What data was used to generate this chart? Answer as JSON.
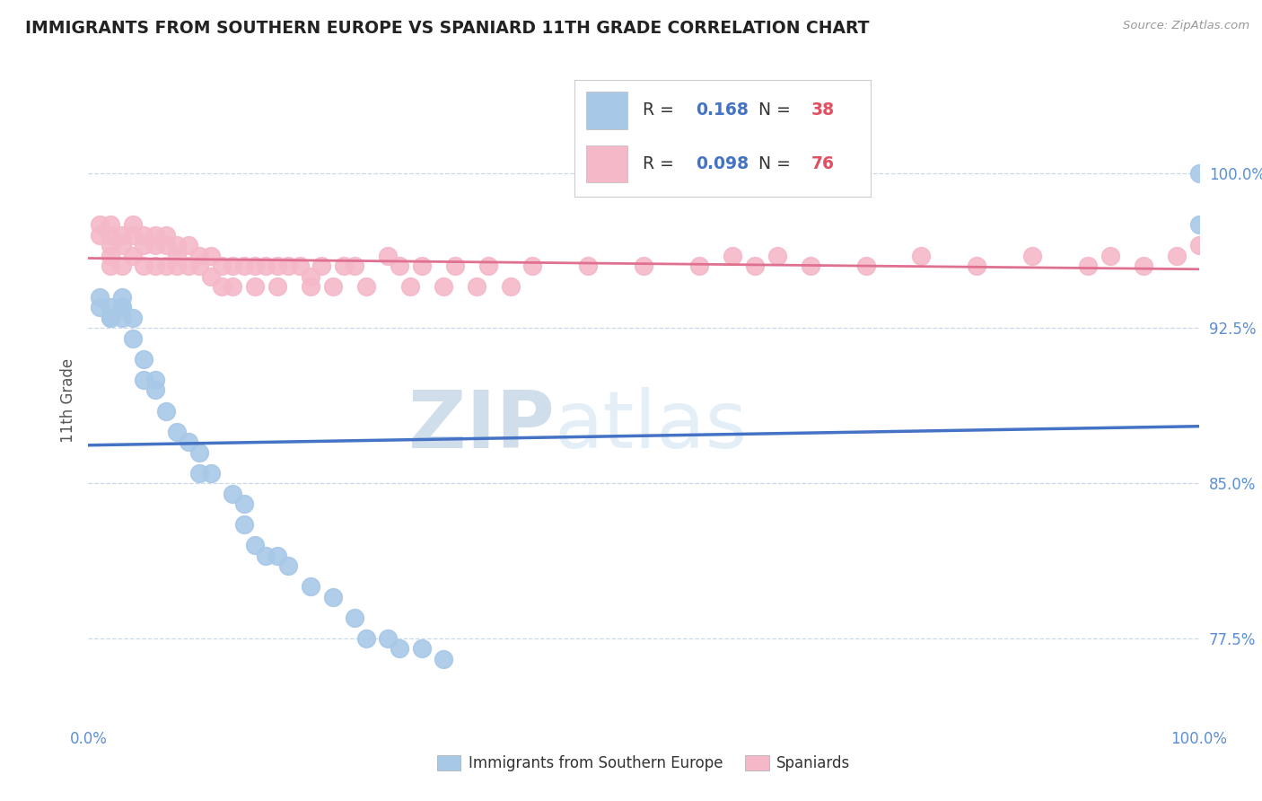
{
  "title": "IMMIGRANTS FROM SOUTHERN EUROPE VS SPANIARD 11TH GRADE CORRELATION CHART",
  "source_text": "Source: ZipAtlas.com",
  "ylabel": "11th Grade",
  "xlim": [
    0.0,
    1.0
  ],
  "ylim": [
    0.735,
    1.045
  ],
  "yticks": [
    0.775,
    0.85,
    0.925,
    1.0
  ],
  "ytick_labels": [
    "77.5%",
    "85.0%",
    "92.5%",
    "100.0%"
  ],
  "xticks": [
    0.0,
    1.0
  ],
  "xtick_labels": [
    "0.0%",
    "100.0%"
  ],
  "blue_R": 0.168,
  "blue_N": 38,
  "pink_R": 0.098,
  "pink_N": 76,
  "blue_color": "#a8c8e8",
  "pink_color": "#f4b8c8",
  "blue_line_color": "#4472c4",
  "pink_line_color": "#e07090",
  "legend_label_blue": "Immigrants from Southern Europe",
  "legend_label_pink": "Spaniards",
  "background_color": "#ffffff",
  "watermark_text": "ZIPatlas",
  "watermark_color": "#dce8f0",
  "blue_x": [
    0.01,
    0.01,
    0.02,
    0.02,
    0.02,
    0.03,
    0.03,
    0.03,
    0.03,
    0.04,
    0.04,
    0.05,
    0.05,
    0.06,
    0.06,
    0.07,
    0.08,
    0.09,
    0.1,
    0.1,
    0.11,
    0.13,
    0.14,
    0.14,
    0.15,
    0.16,
    0.17,
    0.18,
    0.2,
    0.22,
    0.24,
    0.25,
    0.27,
    0.28,
    0.3,
    0.32,
    1.0,
    1.0
  ],
  "blue_y": [
    0.935,
    0.94,
    0.935,
    0.93,
    0.93,
    0.935,
    0.94,
    0.935,
    0.93,
    0.92,
    0.93,
    0.91,
    0.9,
    0.9,
    0.895,
    0.885,
    0.875,
    0.87,
    0.865,
    0.855,
    0.855,
    0.845,
    0.84,
    0.83,
    0.82,
    0.815,
    0.815,
    0.81,
    0.8,
    0.795,
    0.785,
    0.775,
    0.775,
    0.77,
    0.77,
    0.765,
    0.975,
    1.0
  ],
  "pink_x": [
    0.01,
    0.01,
    0.02,
    0.02,
    0.02,
    0.02,
    0.02,
    0.03,
    0.03,
    0.03,
    0.04,
    0.04,
    0.04,
    0.05,
    0.05,
    0.05,
    0.06,
    0.06,
    0.06,
    0.07,
    0.07,
    0.07,
    0.08,
    0.08,
    0.08,
    0.09,
    0.09,
    0.1,
    0.1,
    0.11,
    0.11,
    0.12,
    0.12,
    0.13,
    0.13,
    0.14,
    0.15,
    0.15,
    0.16,
    0.17,
    0.17,
    0.18,
    0.19,
    0.2,
    0.2,
    0.21,
    0.22,
    0.23,
    0.24,
    0.25,
    0.27,
    0.28,
    0.29,
    0.3,
    0.32,
    0.33,
    0.35,
    0.36,
    0.38,
    0.4,
    0.45,
    0.5,
    0.55,
    0.58,
    0.6,
    0.62,
    0.65,
    0.7,
    0.75,
    0.8,
    0.85,
    0.9,
    0.92,
    0.95,
    0.98,
    1.0
  ],
  "pink_y": [
    0.97,
    0.975,
    0.975,
    0.97,
    0.965,
    0.96,
    0.955,
    0.97,
    0.965,
    0.955,
    0.975,
    0.97,
    0.96,
    0.97,
    0.965,
    0.955,
    0.97,
    0.965,
    0.955,
    0.97,
    0.965,
    0.955,
    0.965,
    0.96,
    0.955,
    0.965,
    0.955,
    0.96,
    0.955,
    0.96,
    0.95,
    0.955,
    0.945,
    0.955,
    0.945,
    0.955,
    0.955,
    0.945,
    0.955,
    0.955,
    0.945,
    0.955,
    0.955,
    0.95,
    0.945,
    0.955,
    0.945,
    0.955,
    0.955,
    0.945,
    0.96,
    0.955,
    0.945,
    0.955,
    0.945,
    0.955,
    0.945,
    0.955,
    0.945,
    0.955,
    0.955,
    0.955,
    0.955,
    0.96,
    0.955,
    0.96,
    0.955,
    0.955,
    0.96,
    0.955,
    0.96,
    0.955,
    0.96,
    0.955,
    0.96,
    0.965
  ]
}
